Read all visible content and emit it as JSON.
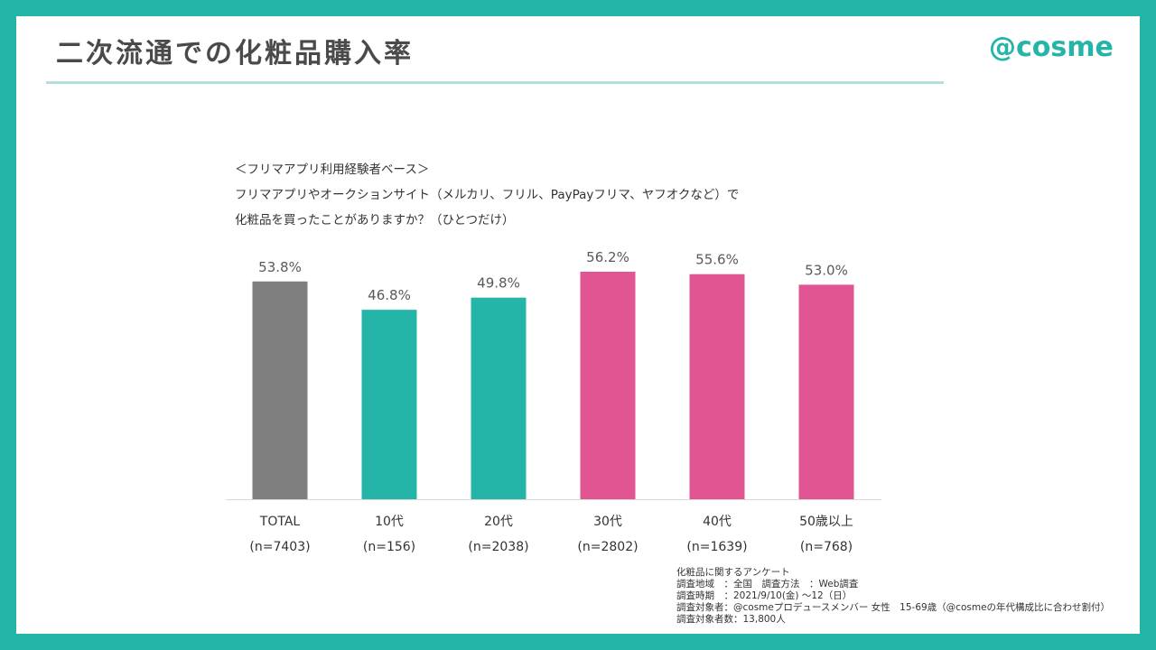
{
  "header": {
    "title": "二次流通での化粧品購入率",
    "brand": "@cosme"
  },
  "question": {
    "base": "＜フリマアプリ利用経験者ベース＞",
    "line1": "フリマアプリやオークションサイト（メルカリ、フリル、PayPayフリマ、ヤフオクなど）で",
    "line2": "化粧品を買ったことがありますか？（ひとつだけ）"
  },
  "chart_data": {
    "type": "bar",
    "title": "二次流通での化粧品購入率",
    "categories": [
      "TOTAL",
      "10代",
      "20代",
      "30代",
      "40代",
      "50歳以上"
    ],
    "sample_sizes": [
      "(n=7403)",
      "(n=156)",
      "(n=2038)",
      "(n=2802)",
      "(n=1639)",
      "(n=768)"
    ],
    "values": [
      53.8,
      46.8,
      49.8,
      56.2,
      55.6,
      53.0
    ],
    "value_labels": [
      "53.8%",
      "46.8%",
      "49.8%",
      "56.2%",
      "55.6%",
      "53.0%"
    ],
    "colors": [
      "#7f7f7f",
      "#25b5a8",
      "#25b5a8",
      "#e05592",
      "#e05592",
      "#e05592"
    ],
    "ylim": [
      0,
      56.2
    ],
    "xlabel": "",
    "ylabel": "",
    "grid": false
  },
  "footnote": {
    "lines": [
      "化粧品に関するアンケート",
      "調査地域　：全国　調査方法　：Web調査",
      "調査時期　：2021/9/10(金) ～12（日）",
      "調査対象者：@cosmeプロデュースメンバー 女性　15-69歳（@cosmeの年代構成比に合わせ割付）",
      "調査対象者数：13,800人"
    ]
  }
}
